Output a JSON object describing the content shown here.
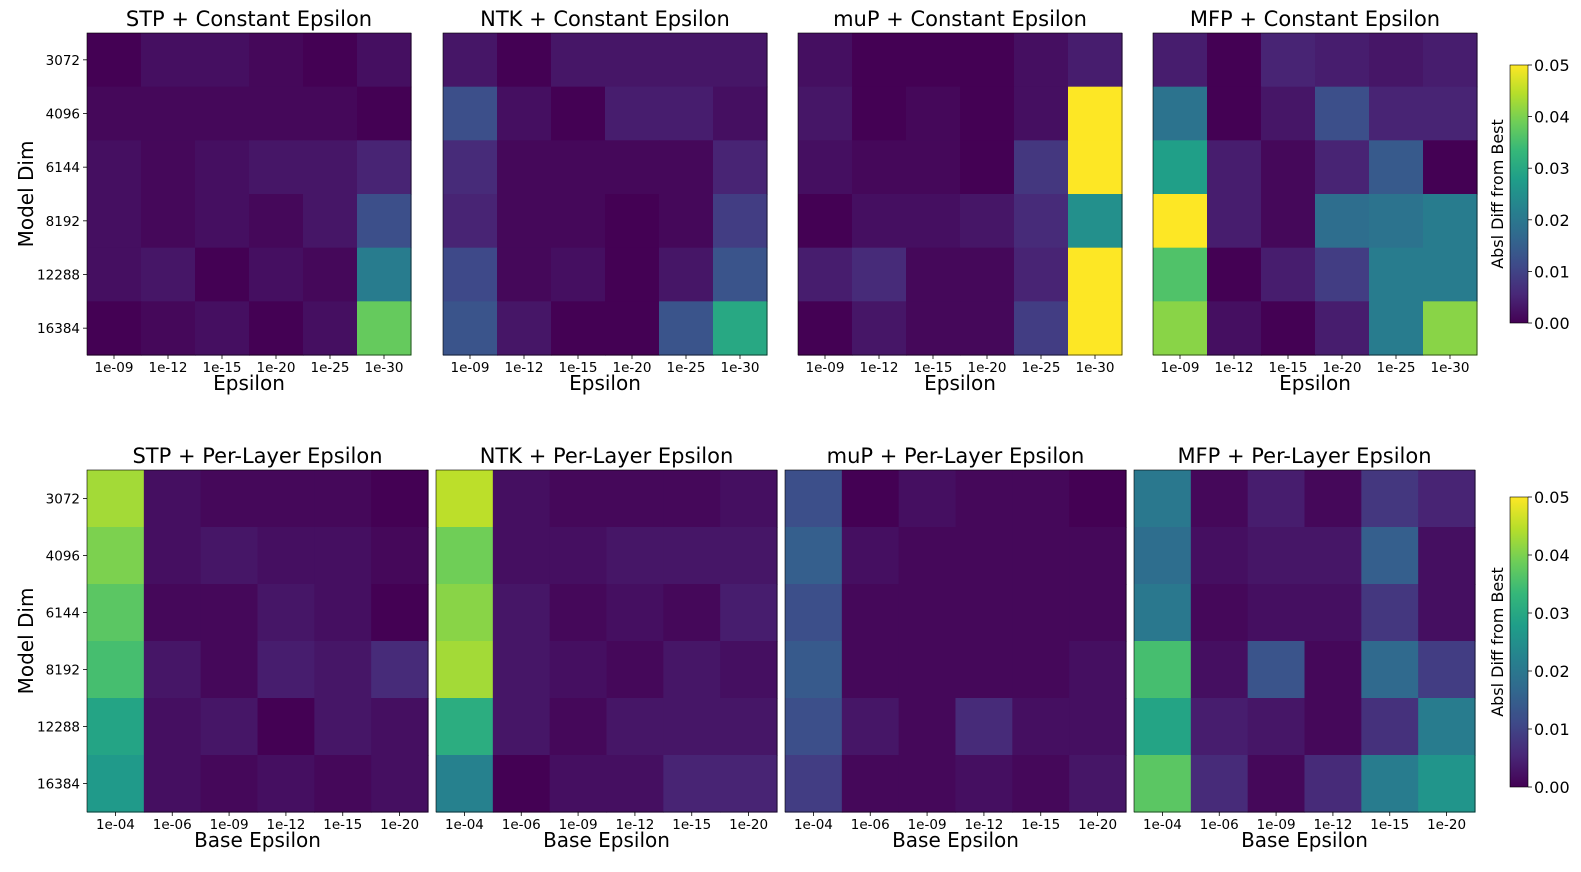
{
  "chart_data": [
    {
      "type": "heatmap",
      "title": "STP + Constant Epsilon",
      "xlabel": "Epsilon",
      "ylabel": "Model Dim",
      "x": [
        "1e-09",
        "1e-12",
        "1e-15",
        "1e-20",
        "1e-25",
        "1e-30"
      ],
      "y": [
        "3072",
        "4096",
        "6144",
        "8192",
        "12288",
        "16384"
      ],
      "values": [
        [
          0.0,
          0.002,
          0.002,
          0.001,
          0.0,
          0.002
        ],
        [
          0.001,
          0.001,
          0.001,
          0.001,
          0.001,
          0.0
        ],
        [
          0.002,
          0.001,
          0.002,
          0.003,
          0.003,
          0.005
        ],
        [
          0.002,
          0.001,
          0.002,
          0.001,
          0.003,
          0.012
        ],
        [
          0.002,
          0.003,
          0.0,
          0.002,
          0.001,
          0.021
        ],
        [
          0.0,
          0.001,
          0.002,
          0.0,
          0.002,
          0.038
        ]
      ],
      "zlim": [
        0,
        0.05
      ]
    },
    {
      "type": "heatmap",
      "title": "NTK + Constant Epsilon",
      "xlabel": "Epsilon",
      "ylabel": "",
      "x": [
        "1e-09",
        "1e-12",
        "1e-15",
        "1e-20",
        "1e-25",
        "1e-30"
      ],
      "y": [
        "3072",
        "4096",
        "6144",
        "8192",
        "12288",
        "16384"
      ],
      "values": [
        [
          0.003,
          0.0,
          0.003,
          0.003,
          0.003,
          0.003
        ],
        [
          0.012,
          0.002,
          0.0,
          0.004,
          0.004,
          0.002
        ],
        [
          0.006,
          0.001,
          0.001,
          0.001,
          0.001,
          0.005
        ],
        [
          0.005,
          0.001,
          0.001,
          0.0,
          0.001,
          0.009
        ],
        [
          0.011,
          0.001,
          0.002,
          0.0,
          0.003,
          0.013
        ],
        [
          0.013,
          0.003,
          0.0,
          0.0,
          0.013,
          0.03
        ]
      ],
      "zlim": [
        0,
        0.05
      ]
    },
    {
      "type": "heatmap",
      "title": "muP + Constant Epsilon",
      "xlabel": "Epsilon",
      "ylabel": "",
      "x": [
        "1e-09",
        "1e-12",
        "1e-15",
        "1e-20",
        "1e-25",
        "1e-30"
      ],
      "y": [
        "3072",
        "4096",
        "6144",
        "8192",
        "12288",
        "16384"
      ],
      "values": [
        [
          0.002,
          0.0,
          0.0,
          0.0,
          0.002,
          0.004
        ],
        [
          0.003,
          0.0,
          0.001,
          0.0,
          0.002,
          0.05
        ],
        [
          0.002,
          0.001,
          0.001,
          0.0,
          0.008,
          0.05
        ],
        [
          0.0,
          0.002,
          0.002,
          0.003,
          0.006,
          0.025
        ],
        [
          0.004,
          0.006,
          0.001,
          0.001,
          0.005,
          0.05
        ],
        [
          0.0,
          0.003,
          0.001,
          0.001,
          0.009,
          0.05
        ]
      ],
      "zlim": [
        0,
        0.05
      ]
    },
    {
      "type": "heatmap",
      "title": "MFP + Constant Epsilon",
      "xlabel": "Epsilon",
      "ylabel": "",
      "x": [
        "1e-09",
        "1e-12",
        "1e-15",
        "1e-20",
        "1e-25",
        "1e-30"
      ],
      "y": [
        "3072",
        "4096",
        "6144",
        "8192",
        "12288",
        "16384"
      ],
      "values": [
        [
          0.004,
          0.0,
          0.005,
          0.004,
          0.003,
          0.004
        ],
        [
          0.019,
          0.0,
          0.003,
          0.012,
          0.005,
          0.005
        ],
        [
          0.028,
          0.004,
          0.001,
          0.005,
          0.014,
          0.0
        ],
        [
          0.05,
          0.004,
          0.001,
          0.018,
          0.019,
          0.021
        ],
        [
          0.036,
          0.0,
          0.004,
          0.009,
          0.021,
          0.021
        ],
        [
          0.041,
          0.002,
          0.0,
          0.004,
          0.021,
          0.041
        ]
      ],
      "zlim": [
        0,
        0.05
      ]
    },
    {
      "type": "heatmap",
      "title": "STP + Per-Layer Epsilon",
      "xlabel": "Base Epsilon",
      "ylabel": "Model Dim",
      "x": [
        "1e-04",
        "1e-06",
        "1e-09",
        "1e-12",
        "1e-15",
        "1e-20"
      ],
      "y": [
        "3072",
        "4096",
        "6144",
        "8192",
        "12288",
        "16384"
      ],
      "values": [
        [
          0.043,
          0.002,
          0.001,
          0.001,
          0.001,
          0.0
        ],
        [
          0.04,
          0.002,
          0.003,
          0.002,
          0.002,
          0.001
        ],
        [
          0.037,
          0.001,
          0.001,
          0.003,
          0.002,
          0.0
        ],
        [
          0.035,
          0.003,
          0.001,
          0.004,
          0.003,
          0.006
        ],
        [
          0.029,
          0.002,
          0.003,
          0.0,
          0.003,
          0.002
        ],
        [
          0.027,
          0.002,
          0.001,
          0.002,
          0.001,
          0.002
        ]
      ],
      "zlim": [
        0,
        0.05
      ]
    },
    {
      "type": "heatmap",
      "title": "NTK + Per-Layer Epsilon",
      "xlabel": "Base Epsilon",
      "ylabel": "",
      "x": [
        "1e-04",
        "1e-06",
        "1e-09",
        "1e-12",
        "1e-15",
        "1e-20"
      ],
      "y": [
        "3072",
        "4096",
        "6144",
        "8192",
        "12288",
        "16384"
      ],
      "values": [
        [
          0.045,
          0.002,
          0.001,
          0.001,
          0.001,
          0.002
        ],
        [
          0.039,
          0.002,
          0.002,
          0.003,
          0.003,
          0.003
        ],
        [
          0.041,
          0.003,
          0.001,
          0.002,
          0.001,
          0.004
        ],
        [
          0.043,
          0.003,
          0.002,
          0.001,
          0.003,
          0.002
        ],
        [
          0.031,
          0.003,
          0.001,
          0.003,
          0.003,
          0.003
        ],
        [
          0.022,
          0.0,
          0.002,
          0.002,
          0.005,
          0.005
        ]
      ],
      "zlim": [
        0,
        0.05
      ]
    },
    {
      "type": "heatmap",
      "title": "muP + Per-Layer Epsilon",
      "xlabel": "Base Epsilon",
      "ylabel": "",
      "x": [
        "1e-04",
        "1e-06",
        "1e-09",
        "1e-12",
        "1e-15",
        "1e-20"
      ],
      "y": [
        "3072",
        "4096",
        "6144",
        "8192",
        "12288",
        "16384"
      ],
      "values": [
        [
          0.012,
          0.0,
          0.002,
          0.001,
          0.001,
          0.0
        ],
        [
          0.015,
          0.002,
          0.001,
          0.001,
          0.001,
          0.001
        ],
        [
          0.012,
          0.001,
          0.001,
          0.001,
          0.001,
          0.001
        ],
        [
          0.014,
          0.001,
          0.001,
          0.001,
          0.001,
          0.002
        ],
        [
          0.012,
          0.003,
          0.001,
          0.006,
          0.002,
          0.002
        ],
        [
          0.009,
          0.001,
          0.001,
          0.002,
          0.001,
          0.003
        ]
      ],
      "zlim": [
        0,
        0.05
      ]
    },
    {
      "type": "heatmap",
      "title": "MFP + Per-Layer Epsilon",
      "xlabel": "Base Epsilon",
      "ylabel": "",
      "x": [
        "1e-04",
        "1e-06",
        "1e-09",
        "1e-12",
        "1e-15",
        "1e-20"
      ],
      "y": [
        "3072",
        "4096",
        "6144",
        "8192",
        "12288",
        "16384"
      ],
      "values": [
        [
          0.02,
          0.001,
          0.004,
          0.001,
          0.008,
          0.005
        ],
        [
          0.018,
          0.002,
          0.003,
          0.003,
          0.015,
          0.002
        ],
        [
          0.02,
          0.001,
          0.002,
          0.002,
          0.008,
          0.002
        ],
        [
          0.035,
          0.002,
          0.013,
          0.001,
          0.017,
          0.009
        ],
        [
          0.029,
          0.004,
          0.003,
          0.001,
          0.007,
          0.021
        ],
        [
          0.037,
          0.006,
          0.001,
          0.006,
          0.021,
          0.026
        ]
      ],
      "zlim": [
        0,
        0.05
      ]
    }
  ],
  "colorbars": [
    {
      "label": "Absl Diff from Best",
      "ticks": [
        "0.00",
        "0.01",
        "0.02",
        "0.03",
        "0.04",
        "0.05"
      ]
    },
    {
      "label": "Absl Diff from Best",
      "ticks": [
        "0.00",
        "0.01",
        "0.02",
        "0.03",
        "0.04",
        "0.05"
      ]
    }
  ],
  "colormap": {
    "name": "viridis",
    "stops": [
      "#440154",
      "#482878",
      "#3e4a89",
      "#31688e",
      "#26828e",
      "#1f9e89",
      "#35b779",
      "#6ece58",
      "#b5de2b",
      "#fde725"
    ]
  }
}
